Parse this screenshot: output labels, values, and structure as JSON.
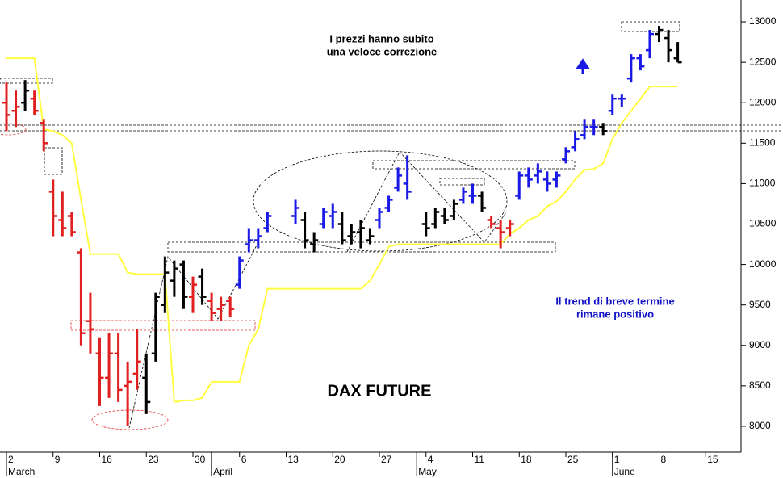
{
  "chart_data": {
    "type": "ohlc",
    "title": "DAX FUTURE",
    "annotations": [
      "I prezzi hanno subito",
      "una veloce correzione",
      "Il trend di breve termine",
      "rimane positivo"
    ],
    "categories": [
      "2",
      null,
      null,
      null,
      null,
      "9",
      null,
      null,
      null,
      null,
      "16",
      null,
      null,
      null,
      null,
      "23",
      null,
      null,
      null,
      null,
      "30",
      null,
      null,
      null,
      null,
      "6",
      null,
      null,
      null,
      null,
      "13",
      null,
      null,
      null,
      null,
      "20",
      null,
      null,
      null,
      null,
      "27",
      null,
      null,
      null,
      null,
      "4",
      null,
      null,
      null,
      null,
      "11",
      null,
      null,
      null,
      null,
      "18",
      null,
      null,
      null,
      null,
      "25",
      null,
      null,
      null,
      null,
      "1",
      null,
      null,
      null,
      null,
      "8",
      null,
      null,
      null,
      null,
      "15",
      null,
      null,
      null
    ],
    "month_labels": [
      {
        "label": "March",
        "start": 0
      },
      {
        "label": "April",
        "start": 22
      },
      {
        "label": "May",
        "start": 44
      },
      {
        "label": "June",
        "start": 65
      }
    ],
    "open": [
      12000,
      11900,
      12000,
      12050,
      11750,
      10900,
      10550,
      10600,
      10150,
      9300,
      8900,
      8600,
      8900,
      8500,
      8650,
      8600,
      8900,
      9500,
      9800,
      10000,
      9600,
      9850,
      9550,
      9450,
      9550,
      9750,
      10250,
      10300,
      10450,
      null,
      null,
      10600,
      10550,
      10250,
      10500,
      10600,
      10500,
      10350,
      10400,
      10300,
      10550,
      10700,
      10950,
      11000,
      null,
      10500,
      10500,
      10600,
      10600,
      10800,
      10850,
      10850,
      10550,
      10450,
      10450,
      10850,
      11100,
      11100,
      11050,
      11050,
      11300,
      11450,
      11600,
      11700,
      11700,
      11900,
      12050,
      12300,
      12550,
      12650,
      12850,
      12800,
      12550,
      null,
      null,
      null,
      null,
      null,
      null
    ],
    "high": [
      12250,
      12150,
      12280,
      12150,
      11800,
      11050,
      10900,
      10650,
      10200,
      9650,
      9100,
      9150,
      9150,
      8800,
      9200,
      8900,
      9650,
      10100,
      10050,
      10050,
      9850,
      9950,
      9650,
      9600,
      9600,
      10100,
      10450,
      10450,
      10650,
      null,
      null,
      10800,
      10650,
      10400,
      10700,
      10750,
      10650,
      10500,
      10550,
      10450,
      10700,
      10850,
      11200,
      11350,
      null,
      10650,
      10700,
      10700,
      10800,
      10950,
      11000,
      10900,
      10600,
      10550,
      10550,
      11150,
      11200,
      11250,
      11150,
      11150,
      11450,
      11650,
      11800,
      11800,
      11750,
      12100,
      12100,
      12600,
      12600,
      12900,
      12950,
      12900,
      12750,
      null,
      null,
      null,
      null,
      null,
      null
    ],
    "low": [
      11650,
      11700,
      11900,
      11850,
      11400,
      10350,
      10350,
      10350,
      9000,
      8900,
      8250,
      8350,
      8300,
      8000,
      8450,
      8150,
      8800,
      9400,
      9600,
      9450,
      9400,
      9500,
      9300,
      9300,
      9350,
      9700,
      10150,
      10200,
      10400,
      null,
      null,
      10500,
      10200,
      10150,
      10450,
      10450,
      10250,
      10250,
      10200,
      10250,
      10450,
      10650,
      10900,
      10800,
      null,
      10350,
      10450,
      10500,
      10550,
      10750,
      10750,
      10650,
      10450,
      10200,
      10350,
      10800,
      10950,
      11000,
      10900,
      10950,
      11250,
      11400,
      11550,
      11600,
      11600,
      11850,
      11950,
      12250,
      12400,
      12550,
      12750,
      12500,
      12500,
      null,
      null,
      null,
      null,
      null,
      null
    ],
    "close": [
      11850,
      11950,
      12150,
      11900,
      11500,
      10600,
      10450,
      10400,
      9150,
      9200,
      8600,
      8900,
      8450,
      8550,
      8800,
      8300,
      9600,
      9900,
      9950,
      9600,
      9750,
      9600,
      9400,
      9500,
      9450,
      10050,
      10300,
      10350,
      10600,
      null,
      null,
      10700,
      10300,
      10300,
      10650,
      10650,
      10300,
      10400,
      10450,
      10350,
      10650,
      10800,
      11100,
      10900,
      null,
      10450,
      10650,
      10550,
      10750,
      10900,
      10850,
      10700,
      10500,
      10400,
      10500,
      11100,
      11050,
      11150,
      11000,
      11100,
      11400,
      11550,
      11700,
      11700,
      11650,
      12050,
      12050,
      12550,
      12450,
      12850,
      12900,
      12650,
      12500,
      null,
      null,
      null,
      null,
      null,
      null
    ],
    "bar_colors": [
      "#e02020",
      "#e02020",
      "#000000",
      "#e02020",
      "#e02020",
      "#e02020",
      "#e02020",
      "#e02020",
      "#e02020",
      "#e02020",
      "#e02020",
      "#e02020",
      "#e02020",
      "#e02020",
      "#e02020",
      "#000000",
      "#000000",
      "#000000",
      "#000000",
      "#000000",
      "#e02020",
      "#000000",
      "#e02020",
      "#e02020",
      "#e02020",
      "#1a1ae6",
      "#1a1ae6",
      "#1a1ae6",
      "#1a1ae6",
      null,
      null,
      "#1a1ae6",
      "#000000",
      "#000000",
      "#1a1ae6",
      "#1a1ae6",
      "#000000",
      "#000000",
      "#000000",
      "#000000",
      "#1a1ae6",
      "#1a1ae6",
      "#1a1ae6",
      "#1a1ae6",
      null,
      "#000000",
      "#000000",
      "#000000",
      "#000000",
      "#1a1ae6",
      "#1a1ae6",
      "#000000",
      "#e02020",
      "#e02020",
      "#e02020",
      "#1a1ae6",
      "#1a1ae6",
      "#1a1ae6",
      "#1a1ae6",
      "#1a1ae6",
      "#1a1ae6",
      "#1a1ae6",
      "#1a1ae6",
      "#1a1ae6",
      "#000000",
      "#1a1ae6",
      "#1a1ae6",
      "#1a1ae6",
      "#1a1ae6",
      "#1a1ae6",
      "#000000",
      "#000000",
      "#000000",
      null,
      null,
      null,
      null,
      null,
      null
    ],
    "trailing_stop": {
      "color": "#ffff40",
      "values": [
        12550,
        12550,
        12550,
        12550,
        11670,
        11650,
        11600,
        11500,
        10800,
        10130,
        10130,
        10130,
        10130,
        9900,
        9880,
        9880,
        9880,
        9880,
        8300,
        8320,
        8320,
        8350,
        8550,
        8550,
        8550,
        8550,
        9000,
        9200,
        9700,
        9700,
        9700,
        9700,
        9700,
        9700,
        9700,
        9700,
        9700,
        9700,
        9700,
        9800,
        10000,
        10220,
        10250,
        10250,
        10250,
        10250,
        10250,
        10250,
        10250,
        10250,
        10250,
        10250,
        10250,
        10250,
        10380,
        10450,
        10550,
        10600,
        10720,
        10780,
        10900,
        11050,
        11170,
        11180,
        11250,
        11550,
        11750,
        11900,
        12050,
        12200,
        12200,
        12200,
        12200
      ]
    },
    "ylim": [
      7800,
      13200
    ],
    "yticks": [
      8000,
      8500,
      9000,
      9500,
      10000,
      10500,
      11000,
      11500,
      12000,
      12500,
      13000
    ]
  }
}
